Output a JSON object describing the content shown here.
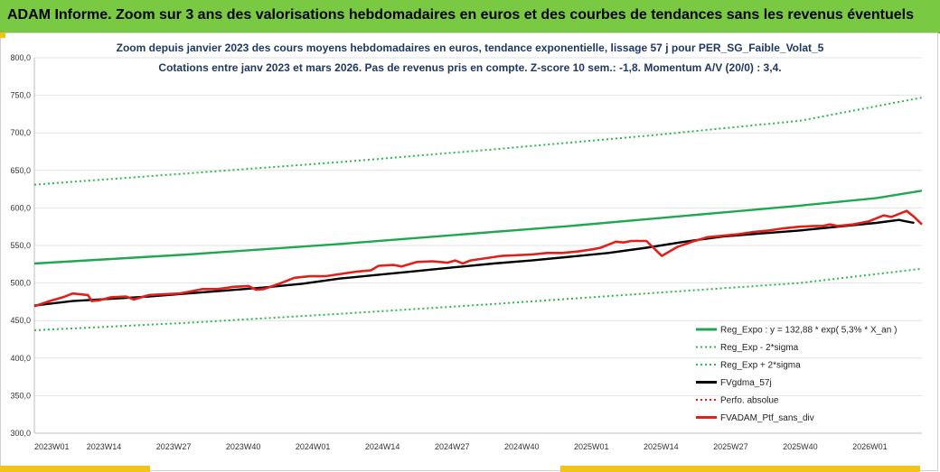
{
  "header": {
    "title": "ADAM Informe. Zoom sur 3 ans des valorisations hebdomadaires en euros et des courbes de tendances sans les revenus éventuels"
  },
  "chart_data": {
    "type": "line",
    "subtitle_line1": "Zoom depuis janvier 2023 des cours moyens hebdomadaires  en euros, tendance exponentielle, lissage 57 j pour PER_SG_Faible_Volat_5",
    "subtitle_line2": "Cotations  entre janv 2023 et mars 2026. Pas de revenus pris en compte. Z-score 10 sem.: -1,8. Momentum A/V (20/0) : 3,4.",
    "x_tick_labels": [
      "2023W01",
      "2023W14",
      "2023W27",
      "2023W40",
      "2024W01",
      "2024W14",
      "2024W27",
      "2024W40",
      "2025W01",
      "2025W14",
      "2025W27",
      "2025W40",
      "2026W01"
    ],
    "y_tick_labels": [
      "300,0",
      "350,0",
      "400,0",
      "450,0",
      "500,0",
      "550,0",
      "600,0",
      "650,0",
      "700,0",
      "750,0",
      "800,0"
    ],
    "ylim": [
      300,
      800
    ],
    "x_index_range": [
      0,
      166
    ],
    "grid": "horizontal",
    "legend_position": "bottom-right",
    "colors": {
      "reg_expo": "#1fa84f",
      "sigma": "#2db84f",
      "fvgdma": "#000000",
      "perfo": "#e0201b",
      "fvadam": "#e0201b"
    },
    "series": [
      {
        "name": "Reg_Expo : y = 132,88 * exp( 5,3% *  X_an )",
        "style": "solid",
        "color_key": "reg_expo",
        "points": [
          [
            0,
            526
          ],
          [
            20,
            532
          ],
          [
            40,
            538
          ],
          [
            60,
            545
          ],
          [
            80,
            552
          ],
          [
            100,
            560
          ],
          [
            120,
            568
          ],
          [
            140,
            576
          ],
          [
            160,
            585
          ],
          [
            180,
            594
          ],
          [
            200,
            603
          ],
          [
            220,
            613
          ],
          [
            232,
            623
          ]
        ]
      },
      {
        "name": "Reg_Exp - 2*sigma",
        "style": "dotted",
        "color_key": "sigma",
        "points": [
          [
            0,
            437
          ],
          [
            40,
            447
          ],
          [
            80,
            459
          ],
          [
            120,
            472
          ],
          [
            160,
            486
          ],
          [
            200,
            500
          ],
          [
            232,
            519
          ]
        ]
      },
      {
        "name": "Reg_Exp + 2*sigma",
        "style": "dotted",
        "color_key": "sigma",
        "points": [
          [
            0,
            631
          ],
          [
            40,
            646
          ],
          [
            80,
            661
          ],
          [
            120,
            678
          ],
          [
            160,
            696
          ],
          [
            200,
            716
          ],
          [
            232,
            747
          ]
        ]
      },
      {
        "name": "FVgdma_57j",
        "style": "solid",
        "color_key": "fvgdma",
        "points": [
          [
            0,
            470
          ],
          [
            10,
            476
          ],
          [
            20,
            479
          ],
          [
            30,
            482
          ],
          [
            40,
            486
          ],
          [
            50,
            490
          ],
          [
            60,
            494
          ],
          [
            70,
            499
          ],
          [
            80,
            506
          ],
          [
            90,
            511
          ],
          [
            100,
            516
          ],
          [
            110,
            521
          ],
          [
            120,
            526
          ],
          [
            130,
            530
          ],
          [
            140,
            535
          ],
          [
            150,
            540
          ],
          [
            160,
            547
          ],
          [
            170,
            555
          ],
          [
            180,
            562
          ],
          [
            190,
            566
          ],
          [
            200,
            570
          ],
          [
            210,
            575
          ],
          [
            220,
            580
          ],
          [
            226,
            584
          ],
          [
            228,
            582
          ],
          [
            230,
            580
          ]
        ]
      },
      {
        "name": "Perfo. absolue",
        "style": "dotted",
        "color_key": "perfo",
        "points": []
      },
      {
        "name": "FVADAM_Ptf_sans_div",
        "style": "solid",
        "color_key": "fvadam",
        "points": [
          [
            0,
            469
          ],
          [
            4,
            476
          ],
          [
            8,
            482
          ],
          [
            10,
            486
          ],
          [
            12,
            485
          ],
          [
            14,
            484
          ],
          [
            15,
            476
          ],
          [
            17,
            477
          ],
          [
            20,
            481
          ],
          [
            24,
            482
          ],
          [
            26,
            478
          ],
          [
            30,
            484
          ],
          [
            34,
            485
          ],
          [
            38,
            486
          ],
          [
            40,
            488
          ],
          [
            44,
            492
          ],
          [
            48,
            492
          ],
          [
            52,
            495
          ],
          [
            56,
            496
          ],
          [
            58,
            491
          ],
          [
            60,
            492
          ],
          [
            64,
            499
          ],
          [
            68,
            507
          ],
          [
            72,
            509
          ],
          [
            76,
            509
          ],
          [
            80,
            512
          ],
          [
            84,
            515
          ],
          [
            88,
            517
          ],
          [
            90,
            523
          ],
          [
            94,
            524
          ],
          [
            96,
            522
          ],
          [
            100,
            528
          ],
          [
            104,
            529
          ],
          [
            108,
            527
          ],
          [
            110,
            530
          ],
          [
            112,
            526
          ],
          [
            114,
            530
          ],
          [
            118,
            533
          ],
          [
            122,
            536
          ],
          [
            126,
            537
          ],
          [
            130,
            538
          ],
          [
            134,
            540
          ],
          [
            138,
            540
          ],
          [
            142,
            542
          ],
          [
            146,
            545
          ],
          [
            148,
            547
          ],
          [
            150,
            551
          ],
          [
            152,
            555
          ],
          [
            154,
            554
          ],
          [
            156,
            556
          ],
          [
            160,
            556
          ],
          [
            164,
            536
          ],
          [
            168,
            548
          ],
          [
            172,
            555
          ],
          [
            176,
            561
          ],
          [
            180,
            563
          ],
          [
            184,
            565
          ],
          [
            188,
            568
          ],
          [
            192,
            570
          ],
          [
            196,
            573
          ],
          [
            200,
            575
          ],
          [
            204,
            576
          ],
          [
            206,
            576
          ],
          [
            208,
            578
          ],
          [
            210,
            576
          ],
          [
            214,
            578
          ],
          [
            218,
            582
          ],
          [
            222,
            590
          ],
          [
            224,
            588
          ],
          [
            226,
            592
          ],
          [
            228,
            596
          ],
          [
            230,
            588
          ],
          [
            232,
            578
          ]
        ]
      }
    ]
  }
}
